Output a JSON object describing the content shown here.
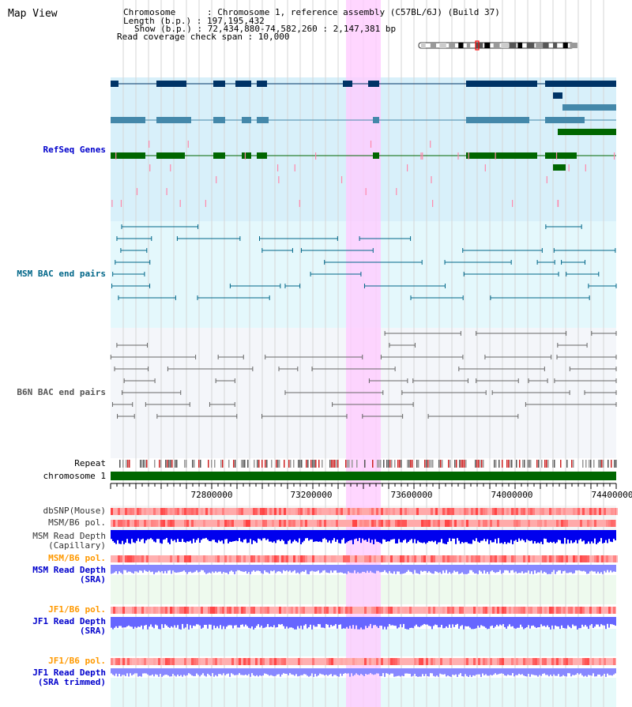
{
  "view_title": "Map View",
  "info": {
    "chromosome_line": "Chromosome      : Chromosome 1, reference assembly (C57BL/6J) (Build 37)",
    "length_line": "Length (b.p.) : 197,195,432",
    "show_line": "Show (b.p.) : 72,434,880-74,582,260 : 2,147,381 bp",
    "coverage_line": "Read coverage check span : 10,000"
  },
  "tracks": {
    "refseq": "RefSeq Genes",
    "msm_bac": "MSM BAC end pairs",
    "b6n_bac": "B6N BAC end pairs",
    "repeat": "Repeat",
    "chromosome": "chromosome 1",
    "dbsnp": "dbSNP(Mouse)",
    "msm_b6_pol_1": "MSM/B6 pol.",
    "msm_depth_cap": "MSM Read Depth\n(Capillary)",
    "msm_b6_pol_2": "MSM/B6 pol.",
    "msm_depth_sra": "MSM Read Depth\n(SRA)",
    "jf1_b6_pol_1": "JF1/B6 pol.",
    "jf1_depth_sra": "JF1 Read Depth\n(SRA)",
    "jf1_b6_pol_2": "JF1/B6 pol.",
    "jf1_depth_trim": "JF1 Read Depth\n(SRA trimmed)"
  },
  "axis": {
    "ticks": [
      "72800000",
      "73200000",
      "73600000",
      "74000000",
      "74400000"
    ]
  },
  "colors": {
    "refseq_label": "#0000cc",
    "msm_label": "#006688",
    "b6n_label": "#666666",
    "pol_label": "#ff9900",
    "depth_label": "#0000cc",
    "highlight": "#ffccff",
    "refseq_bg": "#d8f0fa",
    "msm_bg": "#e4f8fc",
    "b6n_bg": "#f4f6fa"
  }
}
